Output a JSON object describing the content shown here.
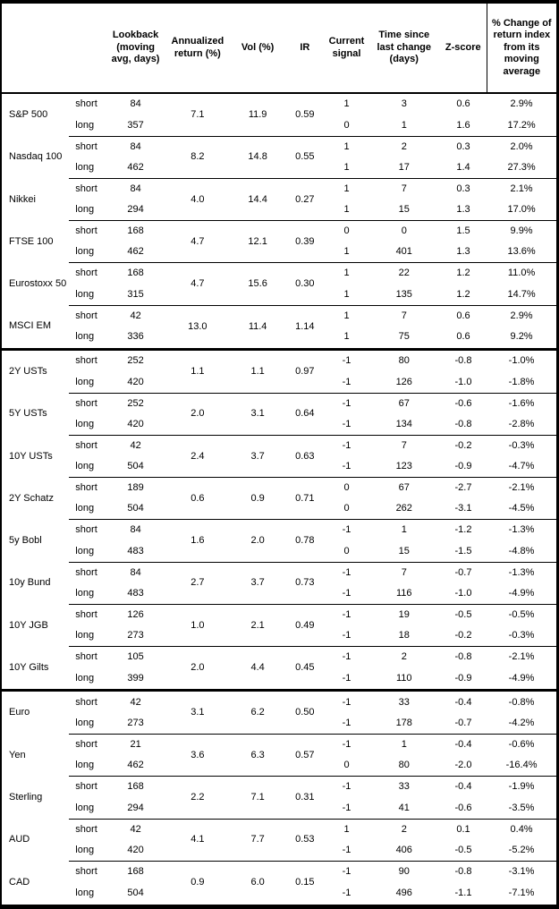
{
  "table": {
    "headers": {
      "asset": "",
      "side": "",
      "lookback": "Lookback (moving avg, days)",
      "annualized_return": "Annualized return (%)",
      "vol": "Vol (%)",
      "ir": "IR",
      "current_signal": "Current signal",
      "time_since": "Time since last change (days)",
      "z_score": "Z-score",
      "pct_change": "% Change of return index from its moving average"
    },
    "sections": [
      {
        "assets": [
          {
            "name": "S&P 500",
            "annualized_return": "7.1",
            "vol": "11.9",
            "ir": "0.59",
            "rows": [
              {
                "side": "short",
                "lookback": "84",
                "signal": "1",
                "time_since": "3",
                "z_score": "0.6",
                "pct_change": "2.9%"
              },
              {
                "side": "long",
                "lookback": "357",
                "signal": "0",
                "time_since": "1",
                "z_score": "1.6",
                "pct_change": "17.2%"
              }
            ]
          },
          {
            "name": "Nasdaq 100",
            "annualized_return": "8.2",
            "vol": "14.8",
            "ir": "0.55",
            "rows": [
              {
                "side": "short",
                "lookback": "84",
                "signal": "1",
                "time_since": "2",
                "z_score": "0.3",
                "pct_change": "2.0%"
              },
              {
                "side": "long",
                "lookback": "462",
                "signal": "1",
                "time_since": "17",
                "z_score": "1.4",
                "pct_change": "27.3%"
              }
            ]
          },
          {
            "name": "Nikkei",
            "annualized_return": "4.0",
            "vol": "14.4",
            "ir": "0.27",
            "rows": [
              {
                "side": "short",
                "lookback": "84",
                "signal": "1",
                "time_since": "7",
                "z_score": "0.3",
                "pct_change": "2.1%"
              },
              {
                "side": "long",
                "lookback": "294",
                "signal": "1",
                "time_since": "15",
                "z_score": "1.3",
                "pct_change": "17.0%"
              }
            ]
          },
          {
            "name": "FTSE 100",
            "annualized_return": "4.7",
            "vol": "12.1",
            "ir": "0.39",
            "rows": [
              {
                "side": "short",
                "lookback": "168",
                "signal": "0",
                "time_since": "0",
                "z_score": "1.5",
                "pct_change": "9.9%"
              },
              {
                "side": "long",
                "lookback": "462",
                "signal": "1",
                "time_since": "401",
                "z_score": "1.3",
                "pct_change": "13.6%"
              }
            ]
          },
          {
            "name": "Eurostoxx 50",
            "annualized_return": "4.7",
            "vol": "15.6",
            "ir": "0.30",
            "rows": [
              {
                "side": "short",
                "lookback": "168",
                "signal": "1",
                "time_since": "22",
                "z_score": "1.2",
                "pct_change": "11.0%"
              },
              {
                "side": "long",
                "lookback": "315",
                "signal": "1",
                "time_since": "135",
                "z_score": "1.2",
                "pct_change": "14.7%"
              }
            ]
          },
          {
            "name": "MSCI EM",
            "annualized_return": "13.0",
            "vol": "11.4",
            "ir": "1.14",
            "rows": [
              {
                "side": "short",
                "lookback": "42",
                "signal": "1",
                "time_since": "7",
                "z_score": "0.6",
                "pct_change": "2.9%"
              },
              {
                "side": "long",
                "lookback": "336",
                "signal": "1",
                "time_since": "75",
                "z_score": "0.6",
                "pct_change": "9.2%"
              }
            ]
          }
        ]
      },
      {
        "assets": [
          {
            "name": "2Y USTs",
            "annualized_return": "1.1",
            "vol": "1.1",
            "ir": "0.97",
            "rows": [
              {
                "side": "short",
                "lookback": "252",
                "signal": "-1",
                "time_since": "80",
                "z_score": "-0.8",
                "pct_change": "-1.0%"
              },
              {
                "side": "long",
                "lookback": "420",
                "signal": "-1",
                "time_since": "126",
                "z_score": "-1.0",
                "pct_change": "-1.8%"
              }
            ]
          },
          {
            "name": "5Y USTs",
            "annualized_return": "2.0",
            "vol": "3.1",
            "ir": "0.64",
            "rows": [
              {
                "side": "short",
                "lookback": "252",
                "signal": "-1",
                "time_since": "67",
                "z_score": "-0.6",
                "pct_change": "-1.6%"
              },
              {
                "side": "long",
                "lookback": "420",
                "signal": "-1",
                "time_since": "134",
                "z_score": "-0.8",
                "pct_change": "-2.8%"
              }
            ]
          },
          {
            "name": "10Y USTs",
            "annualized_return": "2.4",
            "vol": "3.7",
            "ir": "0.63",
            "rows": [
              {
                "side": "short",
                "lookback": "42",
                "signal": "-1",
                "time_since": "7",
                "z_score": "-0.2",
                "pct_change": "-0.3%"
              },
              {
                "side": "long",
                "lookback": "504",
                "signal": "-1",
                "time_since": "123",
                "z_score": "-0.9",
                "pct_change": "-4.7%"
              }
            ]
          },
          {
            "name": "2Y Schatz",
            "annualized_return": "0.6",
            "vol": "0.9",
            "ir": "0.71",
            "rows": [
              {
                "side": "short",
                "lookback": "189",
                "signal": "0",
                "time_since": "67",
                "z_score": "-2.7",
                "pct_change": "-2.1%"
              },
              {
                "side": "long",
                "lookback": "504",
                "signal": "0",
                "time_since": "262",
                "z_score": "-3.1",
                "pct_change": "-4.5%"
              }
            ]
          },
          {
            "name": "5y Bobl",
            "annualized_return": "1.6",
            "vol": "2.0",
            "ir": "0.78",
            "rows": [
              {
                "side": "short",
                "lookback": "84",
                "signal": "-1",
                "time_since": "1",
                "z_score": "-1.2",
                "pct_change": "-1.3%"
              },
              {
                "side": "long",
                "lookback": "483",
                "signal": "0",
                "time_since": "15",
                "z_score": "-1.5",
                "pct_change": "-4.8%"
              }
            ]
          },
          {
            "name": "10y Bund",
            "annualized_return": "2.7",
            "vol": "3.7",
            "ir": "0.73",
            "rows": [
              {
                "side": "short",
                "lookback": "84",
                "signal": "-1",
                "time_since": "7",
                "z_score": "-0.7",
                "pct_change": "-1.3%"
              },
              {
                "side": "long",
                "lookback": "483",
                "signal": "-1",
                "time_since": "116",
                "z_score": "-1.0",
                "pct_change": "-4.9%"
              }
            ]
          },
          {
            "name": "10Y JGB",
            "annualized_return": "1.0",
            "vol": "2.1",
            "ir": "0.49",
            "rows": [
              {
                "side": "short",
                "lookback": "126",
                "signal": "-1",
                "time_since": "19",
                "z_score": "-0.5",
                "pct_change": "-0.5%"
              },
              {
                "side": "long",
                "lookback": "273",
                "signal": "-1",
                "time_since": "18",
                "z_score": "-0.2",
                "pct_change": "-0.3%"
              }
            ]
          },
          {
            "name": "10Y Gilts",
            "annualized_return": "2.0",
            "vol": "4.4",
            "ir": "0.45",
            "rows": [
              {
                "side": "short",
                "lookback": "105",
                "signal": "-1",
                "time_since": "2",
                "z_score": "-0.8",
                "pct_change": "-2.1%"
              },
              {
                "side": "long",
                "lookback": "399",
                "signal": "-1",
                "time_since": "110",
                "z_score": "-0.9",
                "pct_change": "-4.9%"
              }
            ]
          }
        ]
      },
      {
        "assets": [
          {
            "name": "Euro",
            "annualized_return": "3.1",
            "vol": "6.2",
            "ir": "0.50",
            "rows": [
              {
                "side": "short",
                "lookback": "42",
                "signal": "-1",
                "time_since": "33",
                "z_score": "-0.4",
                "pct_change": "-0.8%"
              },
              {
                "side": "long",
                "lookback": "273",
                "signal": "-1",
                "time_since": "178",
                "z_score": "-0.7",
                "pct_change": "-4.2%"
              }
            ]
          },
          {
            "name": "Yen",
            "annualized_return": "3.6",
            "vol": "6.3",
            "ir": "0.57",
            "rows": [
              {
                "side": "short",
                "lookback": "21",
                "signal": "-1",
                "time_since": "1",
                "z_score": "-0.4",
                "pct_change": "-0.6%"
              },
              {
                "side": "long",
                "lookback": "462",
                "signal": "0",
                "time_since": "80",
                "z_score": "-2.0",
                "pct_change": "-16.4%"
              }
            ]
          },
          {
            "name": "Sterling",
            "annualized_return": "2.2",
            "vol": "7.1",
            "ir": "0.31",
            "rows": [
              {
                "side": "short",
                "lookback": "168",
                "signal": "-1",
                "time_since": "33",
                "z_score": "-0.4",
                "pct_change": "-1.9%"
              },
              {
                "side": "long",
                "lookback": "294",
                "signal": "-1",
                "time_since": "41",
                "z_score": "-0.6",
                "pct_change": "-3.5%"
              }
            ]
          },
          {
            "name": "AUD",
            "annualized_return": "4.1",
            "vol": "7.7",
            "ir": "0.53",
            "rows": [
              {
                "side": "short",
                "lookback": "42",
                "signal": "1",
                "time_since": "2",
                "z_score": "0.1",
                "pct_change": "0.4%"
              },
              {
                "side": "long",
                "lookback": "420",
                "signal": "-1",
                "time_since": "406",
                "z_score": "-0.5",
                "pct_change": "-5.2%"
              }
            ]
          },
          {
            "name": "CAD",
            "annualized_return": "0.9",
            "vol": "6.0",
            "ir": "0.15",
            "rows": [
              {
                "side": "short",
                "lookback": "168",
                "signal": "-1",
                "time_since": "90",
                "z_score": "-0.8",
                "pct_change": "-3.1%"
              },
              {
                "side": "long",
                "lookback": "504",
                "signal": "-1",
                "time_since": "496",
                "z_score": "-1.1",
                "pct_change": "-7.1%"
              }
            ]
          }
        ]
      }
    ]
  }
}
